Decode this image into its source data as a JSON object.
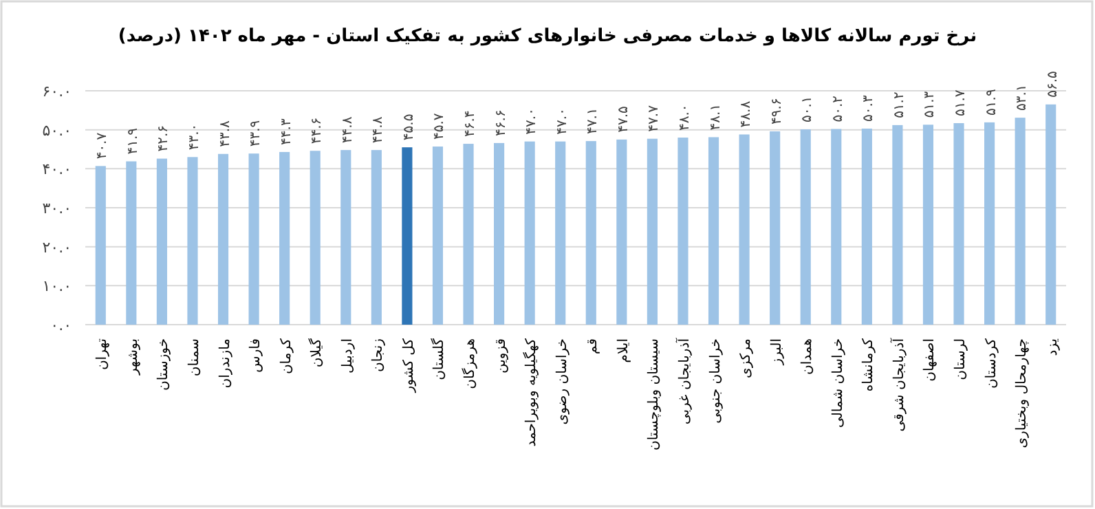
{
  "chart_data": {
    "type": "bar",
    "title": "نرخ تورم سالانه کالاها و خدمات مصرفی خانوارهای کشور به تفکیک استان - مهر ماه ۱۴۰۲ (درصد)",
    "categories": [
      "تهران",
      "بوشهر",
      "خوزستان",
      "سمنان",
      "مازندران",
      "فارس",
      "کرمان",
      "گیلان",
      "اردبیل",
      "زنجان",
      "کل کشور",
      "گلستان",
      "هرمزگان",
      "قزوین",
      "کهگیلویه وبویراحمد",
      "خراسان رضوی",
      "قم",
      "ایلام",
      "سیستان وبلوچستان",
      "آذربایجان غربی",
      "خراسان جنوبی",
      "مرکزی",
      "البرز",
      "همدان",
      "خراسان شمالی",
      "کرمانشاه",
      "آذربایجان شرقی",
      "اصفهان",
      "لرستان",
      "کردستان",
      "چهارمحال وبختیاری",
      "یزد"
    ],
    "values": [
      40.7,
      41.9,
      42.6,
      43.0,
      43.8,
      43.9,
      44.3,
      44.6,
      44.8,
      44.8,
      45.5,
      45.7,
      46.4,
      46.6,
      47.0,
      47.0,
      47.1,
      47.5,
      47.7,
      48.0,
      48.1,
      48.8,
      49.6,
      50.1,
      50.2,
      50.3,
      51.2,
      51.3,
      51.7,
      51.9,
      53.1,
      56.5
    ],
    "value_labels": [
      "۴۰.۷",
      "۴۱.۹",
      "۴۲.۶",
      "۴۳.۰",
      "۴۳.۸",
      "۴۳.۹",
      "۴۴.۳",
      "۴۴.۶",
      "۴۴.۸",
      "۴۴.۸",
      "۴۵.۵",
      "۴۵.۷",
      "۴۶.۴",
      "۴۶.۶",
      "۴۷.۰",
      "۴۷.۰",
      "۴۷.۱",
      "۴۷.۵",
      "۴۷.۷",
      "۴۸.۰",
      "۴۸.۱",
      "۴۸.۸",
      "۴۹.۶",
      "۵۰.۱",
      "۵۰.۲",
      "۵۰.۳",
      "۵۱.۲",
      "۵۱.۳",
      "۵۱.۷",
      "۵۱.۹",
      "۵۳.۱",
      "۵۶.۵"
    ],
    "colors": [
      "#9dc3e6",
      "#9dc3e6",
      "#9dc3e6",
      "#9dc3e6",
      "#9dc3e6",
      "#9dc3e6",
      "#9dc3e6",
      "#9dc3e6",
      "#9dc3e6",
      "#9dc3e6",
      "#2e75b6",
      "#9dc3e6",
      "#9dc3e6",
      "#9dc3e6",
      "#9dc3e6",
      "#9dc3e6",
      "#9dc3e6",
      "#9dc3e6",
      "#9dc3e6",
      "#9dc3e6",
      "#9dc3e6",
      "#9dc3e6",
      "#9dc3e6",
      "#9dc3e6",
      "#9dc3e6",
      "#9dc3e6",
      "#9dc3e6",
      "#9dc3e6",
      "#9dc3e6",
      "#9dc3e6",
      "#9dc3e6",
      "#9dc3e6"
    ],
    "ylim": [
      0,
      60
    ],
    "yticks": [
      {
        "value": 0,
        "label": "۰.۰"
      },
      {
        "value": 10,
        "label": "۱۰.۰"
      },
      {
        "value": 20,
        "label": "۲۰.۰"
      },
      {
        "value": 30,
        "label": "۳۰.۰"
      },
      {
        "value": 40,
        "label": "۴۰.۰"
      },
      {
        "value": 50,
        "label": "۵۰.۰"
      },
      {
        "value": 60,
        "label": "۶۰.۰"
      }
    ],
    "grid": "y"
  }
}
